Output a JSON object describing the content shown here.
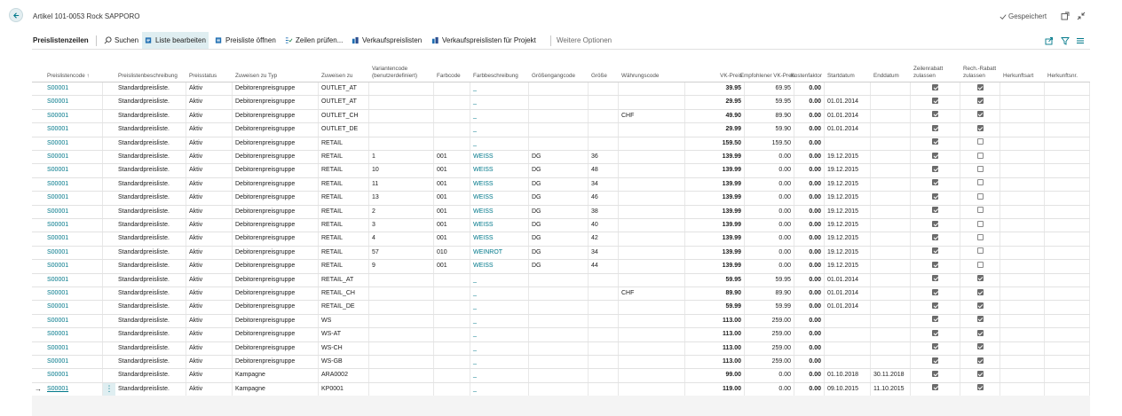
{
  "header": {
    "title": "Artikel 101-0053 Rock SAPPORO",
    "saved_status": "Gespeichert"
  },
  "actionbar": {
    "tab_label": "Preislistenzeilen",
    "actions": [
      {
        "label": "Suchen",
        "icon": "search-icon"
      },
      {
        "label": "Liste bearbeiten",
        "icon": "edit-list-icon"
      },
      {
        "label": "Preisliste öffnen",
        "icon": "open-list-icon"
      },
      {
        "label": "Zeilen prüfen...",
        "icon": "verify-lines-icon"
      },
      {
        "label": "Verkaufspreislisten",
        "icon": "price-lists-icon"
      },
      {
        "label": "Verkaufspreislisten für Projekt",
        "icon": "project-price-lists-icon"
      }
    ],
    "more_options": "Weitere Optionen"
  },
  "columns": [
    "Preislistencode ↑",
    "Preislistenbeschreibung",
    "Preisstatus",
    "Zuweisen zu Typ",
    "Zuweisen zu",
    "Variantencode (benutzerdefiniert)",
    "Farbcode",
    "Farbbeschreibung",
    "Größengangcode",
    "Größe",
    "Währungscode",
    "VK-Preis",
    "Empfohlener VK-Preis",
    "Kostenfaktor",
    "Startdatum",
    "Enddatum",
    "Zeilenrabatt zulassen",
    "Rech.-Rabatt zulassen",
    "Herkunftsart",
    "Herkunftsnr."
  ],
  "rows": [
    {
      "code": "S00001",
      "desc": "Standardpreisliste.",
      "status": "Aktiv",
      "assign_type": "Debitorenpreisgruppe",
      "assign_to": "OUTLET_AT",
      "variant": "",
      "color_code": "",
      "color_desc": "_",
      "size_group": "",
      "size": "",
      "currency": "",
      "price": "39.95",
      "rec_price": "69.95",
      "cost_factor": "0.00",
      "start": "",
      "end": "",
      "line_disc": true,
      "inv_disc": true
    },
    {
      "code": "S00001",
      "desc": "Standardpreisliste.",
      "status": "Aktiv",
      "assign_type": "Debitorenpreisgruppe",
      "assign_to": "OUTLET_AT",
      "variant": "",
      "color_code": "",
      "color_desc": "_",
      "size_group": "",
      "size": "",
      "currency": "",
      "price": "29.95",
      "rec_price": "59.95",
      "cost_factor": "0.00",
      "start": "01.01.2014",
      "end": "",
      "line_disc": true,
      "inv_disc": true
    },
    {
      "code": "S00001",
      "desc": "Standardpreisliste.",
      "status": "Aktiv",
      "assign_type": "Debitorenpreisgruppe",
      "assign_to": "OUTLET_CH",
      "variant": "",
      "color_code": "",
      "color_desc": "_",
      "size_group": "",
      "size": "",
      "currency": "CHF",
      "price": "49.90",
      "rec_price": "89.90",
      "cost_factor": "0.00",
      "start": "01.01.2014",
      "end": "",
      "line_disc": true,
      "inv_disc": true
    },
    {
      "code": "S00001",
      "desc": "Standardpreisliste.",
      "status": "Aktiv",
      "assign_type": "Debitorenpreisgruppe",
      "assign_to": "OUTLET_DE",
      "variant": "",
      "color_code": "",
      "color_desc": "_",
      "size_group": "",
      "size": "",
      "currency": "",
      "price": "29.99",
      "rec_price": "59.90",
      "cost_factor": "0.00",
      "start": "01.01.2014",
      "end": "",
      "line_disc": true,
      "inv_disc": true
    },
    {
      "code": "S00001",
      "desc": "Standardpreisliste.",
      "status": "Aktiv",
      "assign_type": "Debitorenpreisgruppe",
      "assign_to": "RETAIL",
      "variant": "",
      "color_code": "",
      "color_desc": "_",
      "size_group": "",
      "size": "",
      "currency": "",
      "price": "159.50",
      "rec_price": "159.50",
      "cost_factor": "0.00",
      "start": "",
      "end": "",
      "line_disc": true,
      "inv_disc": false
    },
    {
      "code": "S00001",
      "desc": "Standardpreisliste.",
      "status": "Aktiv",
      "assign_type": "Debitorenpreisgruppe",
      "assign_to": "RETAIL",
      "variant": "1",
      "color_code": "001",
      "color_desc": "WEISS",
      "size_group": "DG",
      "size": "36",
      "currency": "",
      "price": "139.99",
      "rec_price": "0.00",
      "cost_factor": "0.00",
      "start": "19.12.2015",
      "end": "",
      "line_disc": true,
      "inv_disc": false
    },
    {
      "code": "S00001",
      "desc": "Standardpreisliste.",
      "status": "Aktiv",
      "assign_type": "Debitorenpreisgruppe",
      "assign_to": "RETAIL",
      "variant": "10",
      "color_code": "001",
      "color_desc": "WEISS",
      "size_group": "DG",
      "size": "48",
      "currency": "",
      "price": "139.99",
      "rec_price": "0.00",
      "cost_factor": "0.00",
      "start": "19.12.2015",
      "end": "",
      "line_disc": true,
      "inv_disc": false
    },
    {
      "code": "S00001",
      "desc": "Standardpreisliste.",
      "status": "Aktiv",
      "assign_type": "Debitorenpreisgruppe",
      "assign_to": "RETAIL",
      "variant": "11",
      "color_code": "001",
      "color_desc": "WEISS",
      "size_group": "DG",
      "size": "34",
      "currency": "",
      "price": "139.99",
      "rec_price": "0.00",
      "cost_factor": "0.00",
      "start": "19.12.2015",
      "end": "",
      "line_disc": true,
      "inv_disc": false
    },
    {
      "code": "S00001",
      "desc": "Standardpreisliste.",
      "status": "Aktiv",
      "assign_type": "Debitorenpreisgruppe",
      "assign_to": "RETAIL",
      "variant": "13",
      "color_code": "001",
      "color_desc": "WEISS",
      "size_group": "DG",
      "size": "46",
      "currency": "",
      "price": "139.99",
      "rec_price": "0.00",
      "cost_factor": "0.00",
      "start": "19.12.2015",
      "end": "",
      "line_disc": true,
      "inv_disc": false
    },
    {
      "code": "S00001",
      "desc": "Standardpreisliste.",
      "status": "Aktiv",
      "assign_type": "Debitorenpreisgruppe",
      "assign_to": "RETAIL",
      "variant": "2",
      "color_code": "001",
      "color_desc": "WEISS",
      "size_group": "DG",
      "size": "38",
      "currency": "",
      "price": "139.99",
      "rec_price": "0.00",
      "cost_factor": "0.00",
      "start": "19.12.2015",
      "end": "",
      "line_disc": true,
      "inv_disc": false
    },
    {
      "code": "S00001",
      "desc": "Standardpreisliste.",
      "status": "Aktiv",
      "assign_type": "Debitorenpreisgruppe",
      "assign_to": "RETAIL",
      "variant": "3",
      "color_code": "001",
      "color_desc": "WEISS",
      "size_group": "DG",
      "size": "40",
      "currency": "",
      "price": "139.99",
      "rec_price": "0.00",
      "cost_factor": "0.00",
      "start": "19.12.2015",
      "end": "",
      "line_disc": true,
      "inv_disc": false
    },
    {
      "code": "S00001",
      "desc": "Standardpreisliste.",
      "status": "Aktiv",
      "assign_type": "Debitorenpreisgruppe",
      "assign_to": "RETAIL",
      "variant": "4",
      "color_code": "001",
      "color_desc": "WEISS",
      "size_group": "DG",
      "size": "42",
      "currency": "",
      "price": "139.99",
      "rec_price": "0.00",
      "cost_factor": "0.00",
      "start": "19.12.2015",
      "end": "",
      "line_disc": true,
      "inv_disc": false
    },
    {
      "code": "S00001",
      "desc": "Standardpreisliste.",
      "status": "Aktiv",
      "assign_type": "Debitorenpreisgruppe",
      "assign_to": "RETAIL",
      "variant": "57",
      "color_code": "010",
      "color_desc": "WEINROT",
      "size_group": "DG",
      "size": "34",
      "currency": "",
      "price": "139.99",
      "rec_price": "0.00",
      "cost_factor": "0.00",
      "start": "19.12.2015",
      "end": "",
      "line_disc": true,
      "inv_disc": false
    },
    {
      "code": "S00001",
      "desc": "Standardpreisliste.",
      "status": "Aktiv",
      "assign_type": "Debitorenpreisgruppe",
      "assign_to": "RETAIL",
      "variant": "9",
      "color_code": "001",
      "color_desc": "WEISS",
      "size_group": "DG",
      "size": "44",
      "currency": "",
      "price": "139.99",
      "rec_price": "0.00",
      "cost_factor": "0.00",
      "start": "19.12.2015",
      "end": "",
      "line_disc": true,
      "inv_disc": false
    },
    {
      "code": "S00001",
      "desc": "Standardpreisliste.",
      "status": "Aktiv",
      "assign_type": "Debitorenpreisgruppe",
      "assign_to": "RETAIL_AT",
      "variant": "",
      "color_code": "",
      "color_desc": "_",
      "size_group": "",
      "size": "",
      "currency": "",
      "price": "59.95",
      "rec_price": "59.95",
      "cost_factor": "0.00",
      "start": "01.01.2014",
      "end": "",
      "line_disc": true,
      "inv_disc": true
    },
    {
      "code": "S00001",
      "desc": "Standardpreisliste.",
      "status": "Aktiv",
      "assign_type": "Debitorenpreisgruppe",
      "assign_to": "RETAIL_CH",
      "variant": "",
      "color_code": "",
      "color_desc": "_",
      "size_group": "",
      "size": "",
      "currency": "CHF",
      "price": "89.90",
      "rec_price": "89.90",
      "cost_factor": "0.00",
      "start": "01.01.2014",
      "end": "",
      "line_disc": true,
      "inv_disc": true
    },
    {
      "code": "S00001",
      "desc": "Standardpreisliste.",
      "status": "Aktiv",
      "assign_type": "Debitorenpreisgruppe",
      "assign_to": "RETAIL_DE",
      "variant": "",
      "color_code": "",
      "color_desc": "_",
      "size_group": "",
      "size": "",
      "currency": "",
      "price": "59.99",
      "rec_price": "59.99",
      "cost_factor": "0.00",
      "start": "01.01.2014",
      "end": "",
      "line_disc": true,
      "inv_disc": true
    },
    {
      "code": "S00001",
      "desc": "Standardpreisliste.",
      "status": "Aktiv",
      "assign_type": "Debitorenpreisgruppe",
      "assign_to": "WS",
      "variant": "",
      "color_code": "",
      "color_desc": "_",
      "size_group": "",
      "size": "",
      "currency": "",
      "price": "113.00",
      "rec_price": "259.00",
      "cost_factor": "0.00",
      "start": "",
      "end": "",
      "line_disc": true,
      "inv_disc": true
    },
    {
      "code": "S00001",
      "desc": "Standardpreisliste.",
      "status": "Aktiv",
      "assign_type": "Debitorenpreisgruppe",
      "assign_to": "WS-AT",
      "variant": "",
      "color_code": "",
      "color_desc": "_",
      "size_group": "",
      "size": "",
      "currency": "",
      "price": "113.00",
      "rec_price": "259.00",
      "cost_factor": "0.00",
      "start": "",
      "end": "",
      "line_disc": true,
      "inv_disc": true
    },
    {
      "code": "S00001",
      "desc": "Standardpreisliste.",
      "status": "Aktiv",
      "assign_type": "Debitorenpreisgruppe",
      "assign_to": "WS-CH",
      "variant": "",
      "color_code": "",
      "color_desc": "_",
      "size_group": "",
      "size": "",
      "currency": "",
      "price": "113.00",
      "rec_price": "259.00",
      "cost_factor": "0.00",
      "start": "",
      "end": "",
      "line_disc": true,
      "inv_disc": true
    },
    {
      "code": "S00001",
      "desc": "Standardpreisliste.",
      "status": "Aktiv",
      "assign_type": "Debitorenpreisgruppe",
      "assign_to": "WS-GB",
      "variant": "",
      "color_code": "",
      "color_desc": "_",
      "size_group": "",
      "size": "",
      "currency": "",
      "price": "113.00",
      "rec_price": "259.00",
      "cost_factor": "0.00",
      "start": "",
      "end": "",
      "line_disc": true,
      "inv_disc": true
    },
    {
      "code": "S00001",
      "desc": "Standardpreisliste.",
      "status": "Aktiv",
      "assign_type": "Kampagne",
      "assign_to": "ARA0002",
      "variant": "",
      "color_code": "",
      "color_desc": "_",
      "size_group": "",
      "size": "",
      "currency": "",
      "price": "99.00",
      "rec_price": "0.00",
      "cost_factor": "0.00",
      "start": "01.10.2018",
      "end": "30.11.2018",
      "line_disc": true,
      "inv_disc": true
    },
    {
      "code": "S00001",
      "desc": "Standardpreisliste.",
      "status": "Aktiv",
      "assign_type": "Kampagne",
      "assign_to": "KP0001",
      "variant": "",
      "color_code": "",
      "color_desc": "_",
      "size_group": "",
      "size": "",
      "currency": "",
      "price": "119.00",
      "rec_price": "0.00",
      "cost_factor": "0.00",
      "start": "09.10.2015",
      "end": "11.10.2015",
      "line_disc": true,
      "inv_disc": true,
      "current": true
    }
  ],
  "colors": {
    "accent": "#00788a",
    "active_bg": "#dfeef1"
  }
}
